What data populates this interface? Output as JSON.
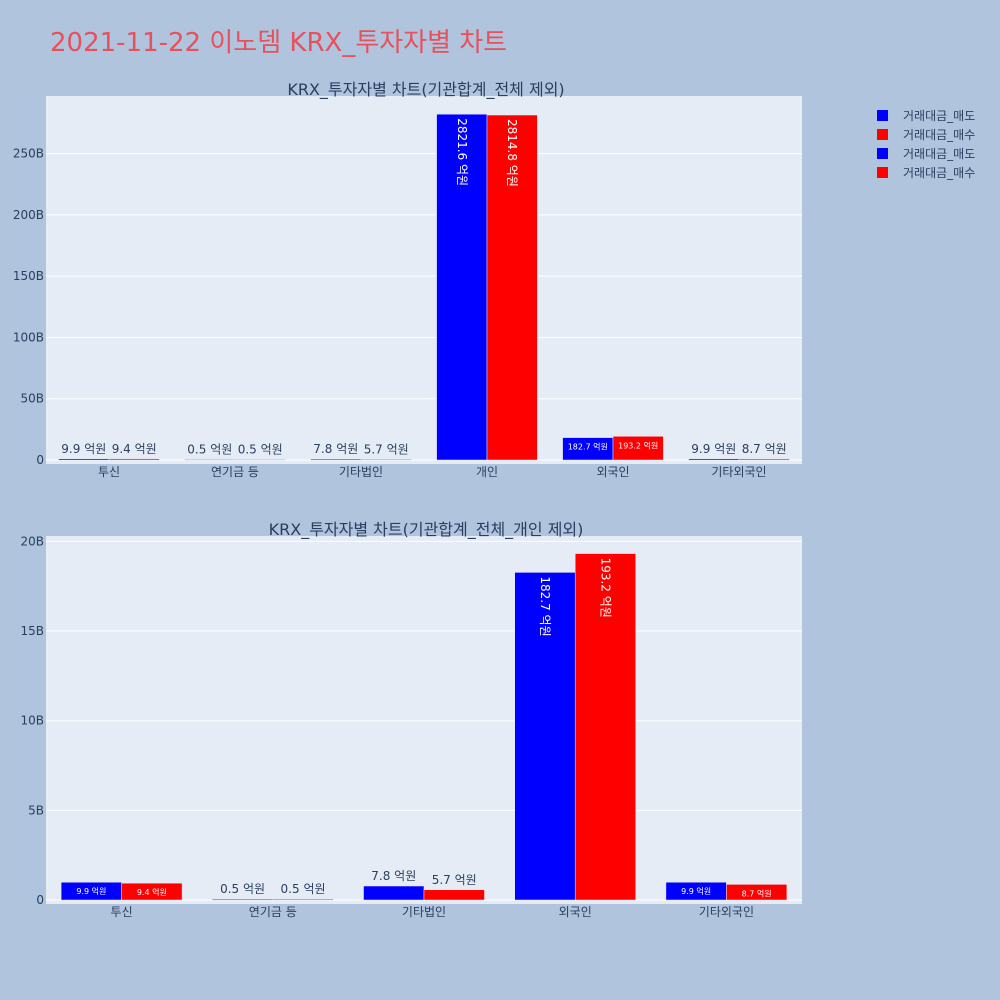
{
  "title": "2021-11-22 이노뎀 KRX_투자자별 차트",
  "legend": [
    {
      "label": "거래대금_매도",
      "color": "#0000ff"
    },
    {
      "label": "거래대금_매수",
      "color": "#ff0000"
    },
    {
      "label": "거래대금_매도",
      "color": "#0000ff"
    },
    {
      "label": "거래대금_매수",
      "color": "#ff0000"
    }
  ],
  "chart_data": [
    {
      "type": "bar",
      "title": "KRX_투자자별 차트(기관합계_전체 제외)",
      "categories": [
        "투신",
        "연기금 등",
        "기타법인",
        "개인",
        "외국인",
        "기타외국인"
      ],
      "series": [
        {
          "name": "거래대금_매도",
          "color": "#0000ff",
          "values": [
            0.99,
            0.05,
            0.78,
            282.16,
            18.27,
            0.99
          ],
          "labels": [
            "9.9 억원",
            "0.5 억원",
            "7.8 억원",
            "2821.6 억원",
            "182.7 억원",
            "9.9 억원"
          ]
        },
        {
          "name": "거래대금_매수",
          "color": "#ff0000",
          "values": [
            0.94,
            0.05,
            0.57,
            281.48,
            19.32,
            0.87
          ],
          "labels": [
            "9.4 억원",
            "0.5 억원",
            "5.7 억원",
            "2814.8 억원",
            "193.2 억원",
            "8.7 억원"
          ]
        }
      ],
      "yticks": [
        0,
        50,
        100,
        150,
        200,
        250
      ],
      "ytick_labels": [
        "0",
        "50B",
        "100B",
        "150B",
        "200B",
        "250B"
      ],
      "ylim": [
        0,
        297
      ],
      "grid": true
    },
    {
      "type": "bar",
      "title": "KRX_투자자별 차트(기관합계_전체_개인 제외)",
      "categories": [
        "투신",
        "연기금 등",
        "기타법인",
        "외국인",
        "기타외국인"
      ],
      "series": [
        {
          "name": "거래대금_매도",
          "color": "#0000ff",
          "values": [
            0.99,
            0.05,
            0.78,
            18.27,
            0.99
          ],
          "labels": [
            "9.9 억원",
            "0.5 억원",
            "7.8 억원",
            "182.7 억원",
            "9.9 억원"
          ]
        },
        {
          "name": "거래대금_매수",
          "color": "#ff0000",
          "values": [
            0.94,
            0.05,
            0.57,
            19.32,
            0.87
          ],
          "labels": [
            "9.4 억원",
            "0.5 억원",
            "5.7 억원",
            "193.2 억원",
            "8.7 억원"
          ]
        }
      ],
      "yticks": [
        0,
        5,
        10,
        15,
        20
      ],
      "ytick_labels": [
        "0",
        "5B",
        "10B",
        "15B",
        "20B"
      ],
      "ylim": [
        0,
        20.3
      ],
      "grid": true
    }
  ]
}
